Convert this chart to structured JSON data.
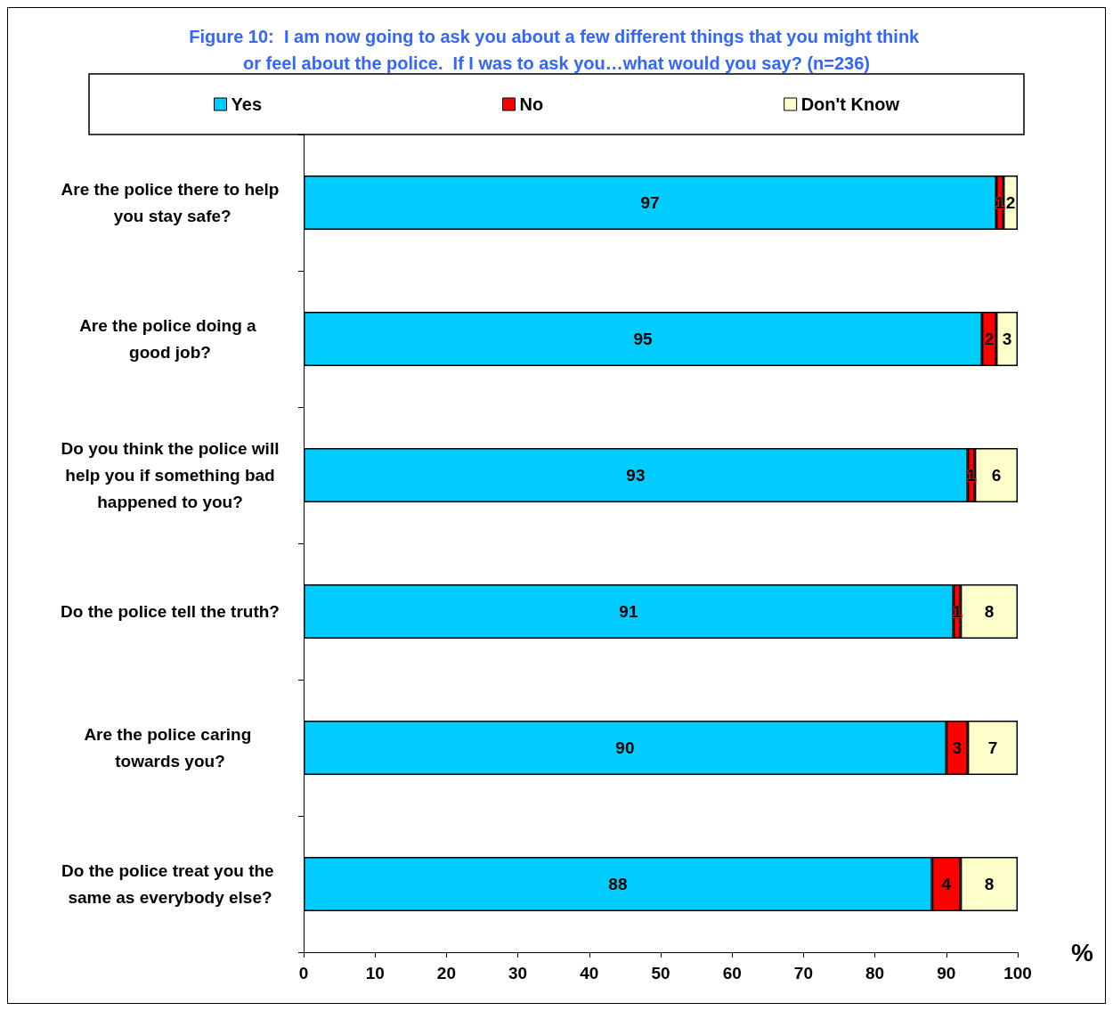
{
  "chart_data": {
    "type": "bar",
    "orientation": "horizontal",
    "stacked": true,
    "title": "Figure 10:  I am now going to ask you about a few different things that you might think or feel about the police.  If I was to ask you…what would you say? (n=236)",
    "xlabel": "%",
    "categories": [
      "Are the police there to help you stay safe?",
      "Are the police doing a good job?",
      "Do you think the police will help you if something bad happened to you?",
      "Do the police tell the truth?",
      "Are the police caring towards you?",
      "Do the police treat you the same as everybody else?"
    ],
    "series": [
      {
        "name": "Yes",
        "color": "#00ccff",
        "values": [
          97,
          95,
          93,
          91,
          90,
          88
        ]
      },
      {
        "name": "No",
        "color": "#ff0000",
        "values": [
          1,
          2,
          1,
          1,
          3,
          4
        ]
      },
      {
        "name": "Don't Know",
        "color": "#ffffcc",
        "values": [
          2,
          3,
          6,
          8,
          7,
          8
        ]
      }
    ],
    "xlim": [
      0,
      100
    ],
    "xticks": [
      0,
      10,
      20,
      30,
      40,
      50,
      60,
      70,
      80,
      90,
      100
    ],
    "grid": false,
    "legend": "top",
    "data_labels": true
  }
}
